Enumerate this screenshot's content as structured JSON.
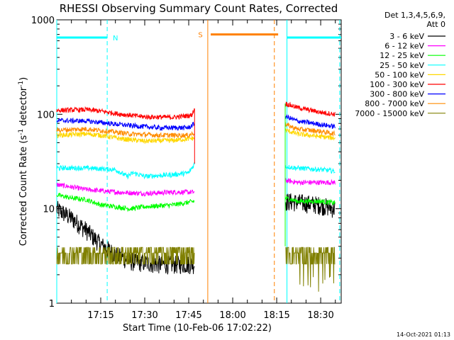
{
  "chart_data": {
    "type": "line",
    "title": "RHESSI Observing Summary Count Rates, Corrected",
    "xlabel": "Start Time (10-Feb-06 17:02:22)",
    "ylabel_main": "Corrected Count Rate (s",
    "ylabel_sup1": "-1",
    "ylabel_mid": " detector",
    "ylabel_sup2": "-1",
    "ylabel_end": ")",
    "yscale": "log",
    "ylim": [
      1,
      1000
    ],
    "xlim_min": [
      0,
      97
    ],
    "yticks": [
      {
        "v": 1,
        "label": "1"
      },
      {
        "v": 10,
        "label": "10"
      },
      {
        "v": 100,
        "label": "100"
      },
      {
        "v": 1000,
        "label": "1000"
      }
    ],
    "xticks": [
      {
        "t": 15,
        "label": "17:15"
      },
      {
        "t": 30,
        "label": "17:30"
      },
      {
        "t": 45,
        "label": "17:45"
      },
      {
        "t": 60,
        "label": "18:00"
      },
      {
        "t": 75,
        "label": "18:15"
      },
      {
        "t": 90,
        "label": "18:30"
      }
    ],
    "legend_header_1": "Det 1,3,4,5,6,9,",
    "legend_header_2": "Att 0",
    "legend_placement": "right",
    "footer_date": "14-Oct-2021 01:13",
    "data_gap_min": [
      50.5,
      77.0
    ],
    "series": [
      {
        "name": "3 - 6 keV",
        "color": "#000000",
        "profile": "soft",
        "p1": [
          [
            0,
            10
          ],
          [
            5,
            8
          ],
          [
            10,
            6
          ],
          [
            15,
            4.2
          ],
          [
            20,
            3.3
          ],
          [
            25,
            2.8
          ],
          [
            35,
            2.6
          ],
          [
            47,
            2.6
          ]
        ],
        "p2": [
          [
            78,
            12
          ],
          [
            80,
            12
          ],
          [
            85,
            11.5
          ],
          [
            90,
            11
          ],
          [
            95,
            10
          ]
        ]
      },
      {
        "name": "6 - 12 keV",
        "color": "#ff00ff",
        "p1": [
          [
            0,
            18
          ],
          [
            5,
            17
          ],
          [
            10,
            16
          ],
          [
            20,
            15
          ],
          [
            30,
            14.5
          ],
          [
            40,
            15
          ],
          [
            47,
            15
          ]
        ],
        "p2": [
          [
            78,
            20
          ],
          [
            82,
            19
          ],
          [
            90,
            19
          ],
          [
            95,
            19
          ]
        ]
      },
      {
        "name": "12 - 25 keV",
        "color": "#00ff00",
        "p1": [
          [
            0,
            14
          ],
          [
            5,
            13
          ],
          [
            10,
            12.5
          ],
          [
            15,
            11
          ],
          [
            20,
            10.5
          ],
          [
            25,
            10
          ],
          [
            30,
            10.5
          ],
          [
            40,
            11
          ],
          [
            47,
            12
          ]
        ],
        "p2": [
          [
            78,
            13
          ],
          [
            82,
            12
          ],
          [
            90,
            12
          ],
          [
            95,
            11.5
          ]
        ]
      },
      {
        "name": "25 - 50 keV",
        "color": "#00ffff",
        "p1": [
          [
            0,
            27
          ],
          [
            10,
            27
          ],
          [
            20,
            26
          ],
          [
            24,
            22
          ],
          [
            26,
            24
          ],
          [
            30,
            22
          ],
          [
            40,
            23
          ],
          [
            45,
            24
          ],
          [
            47,
            30
          ]
        ],
        "p2": [
          [
            78,
            28
          ],
          [
            82,
            27
          ],
          [
            90,
            26
          ],
          [
            95,
            25
          ]
        ]
      },
      {
        "name": "50 - 100 keV",
        "color": "#ffd700",
        "p1": [
          [
            0,
            60
          ],
          [
            10,
            62
          ],
          [
            15,
            60
          ],
          [
            22,
            55
          ],
          [
            30,
            52
          ],
          [
            40,
            53
          ],
          [
            47,
            56
          ]
        ],
        "p2": [
          [
            78,
            68
          ],
          [
            82,
            62
          ],
          [
            90,
            58
          ],
          [
            95,
            56
          ]
        ]
      },
      {
        "name": "100 - 300 keV",
        "color": "#ff0000",
        "p1": [
          [
            0,
            110
          ],
          [
            10,
            112
          ],
          [
            15,
            108
          ],
          [
            22,
            100
          ],
          [
            30,
            94
          ],
          [
            40,
            93
          ],
          [
            46,
            98
          ],
          [
            47,
            115
          ]
        ],
        "p2": [
          [
            78,
            130
          ],
          [
            82,
            118
          ],
          [
            90,
            105
          ],
          [
            95,
            100
          ]
        ]
      },
      {
        "name": "300 - 800 keV",
        "color": "#0000ff",
        "p1": [
          [
            0,
            86
          ],
          [
            10,
            85
          ],
          [
            18,
            80
          ],
          [
            25,
            76
          ],
          [
            35,
            72
          ],
          [
            45,
            72
          ],
          [
            47,
            80
          ]
        ],
        "p2": [
          [
            78,
            95
          ],
          [
            82,
            85
          ],
          [
            90,
            78
          ],
          [
            95,
            74
          ]
        ]
      },
      {
        "name": "800 - 7000 keV",
        "color": "#ff8c00",
        "p1": [
          [
            0,
            68
          ],
          [
            10,
            70
          ],
          [
            18,
            66
          ],
          [
            25,
            62
          ],
          [
            35,
            60
          ],
          [
            45,
            60
          ],
          [
            47,
            64
          ]
        ],
        "p2": [
          [
            78,
            78
          ],
          [
            82,
            70
          ],
          [
            90,
            66
          ],
          [
            95,
            62
          ]
        ]
      },
      {
        "name": "7000 - 15000 keV",
        "color": "#808000",
        "profile": "step",
        "p1": [
          [
            0,
            3.5
          ],
          [
            47,
            3.5
          ]
        ],
        "p2": [
          [
            78,
            3.2
          ],
          [
            95,
            3.2
          ]
        ]
      }
    ],
    "flags": [
      {
        "label": "N",
        "color": "#00ffff",
        "level": 650,
        "segments": [
          [
            0,
            17.2
          ],
          [
            78.5,
            97
          ]
        ],
        "dashed_at": [
          17.2,
          96.5
        ],
        "solid_at": [
          0,
          78.5
        ],
        "label_at": 20
      },
      {
        "label": "S",
        "color": "#ff8000",
        "level": 700,
        "segments": [
          [
            52.5,
            75.5
          ]
        ],
        "dashed_at": [
          74.2
        ],
        "solid_at": [
          51.5
        ],
        "label_at": 49
      }
    ]
  }
}
